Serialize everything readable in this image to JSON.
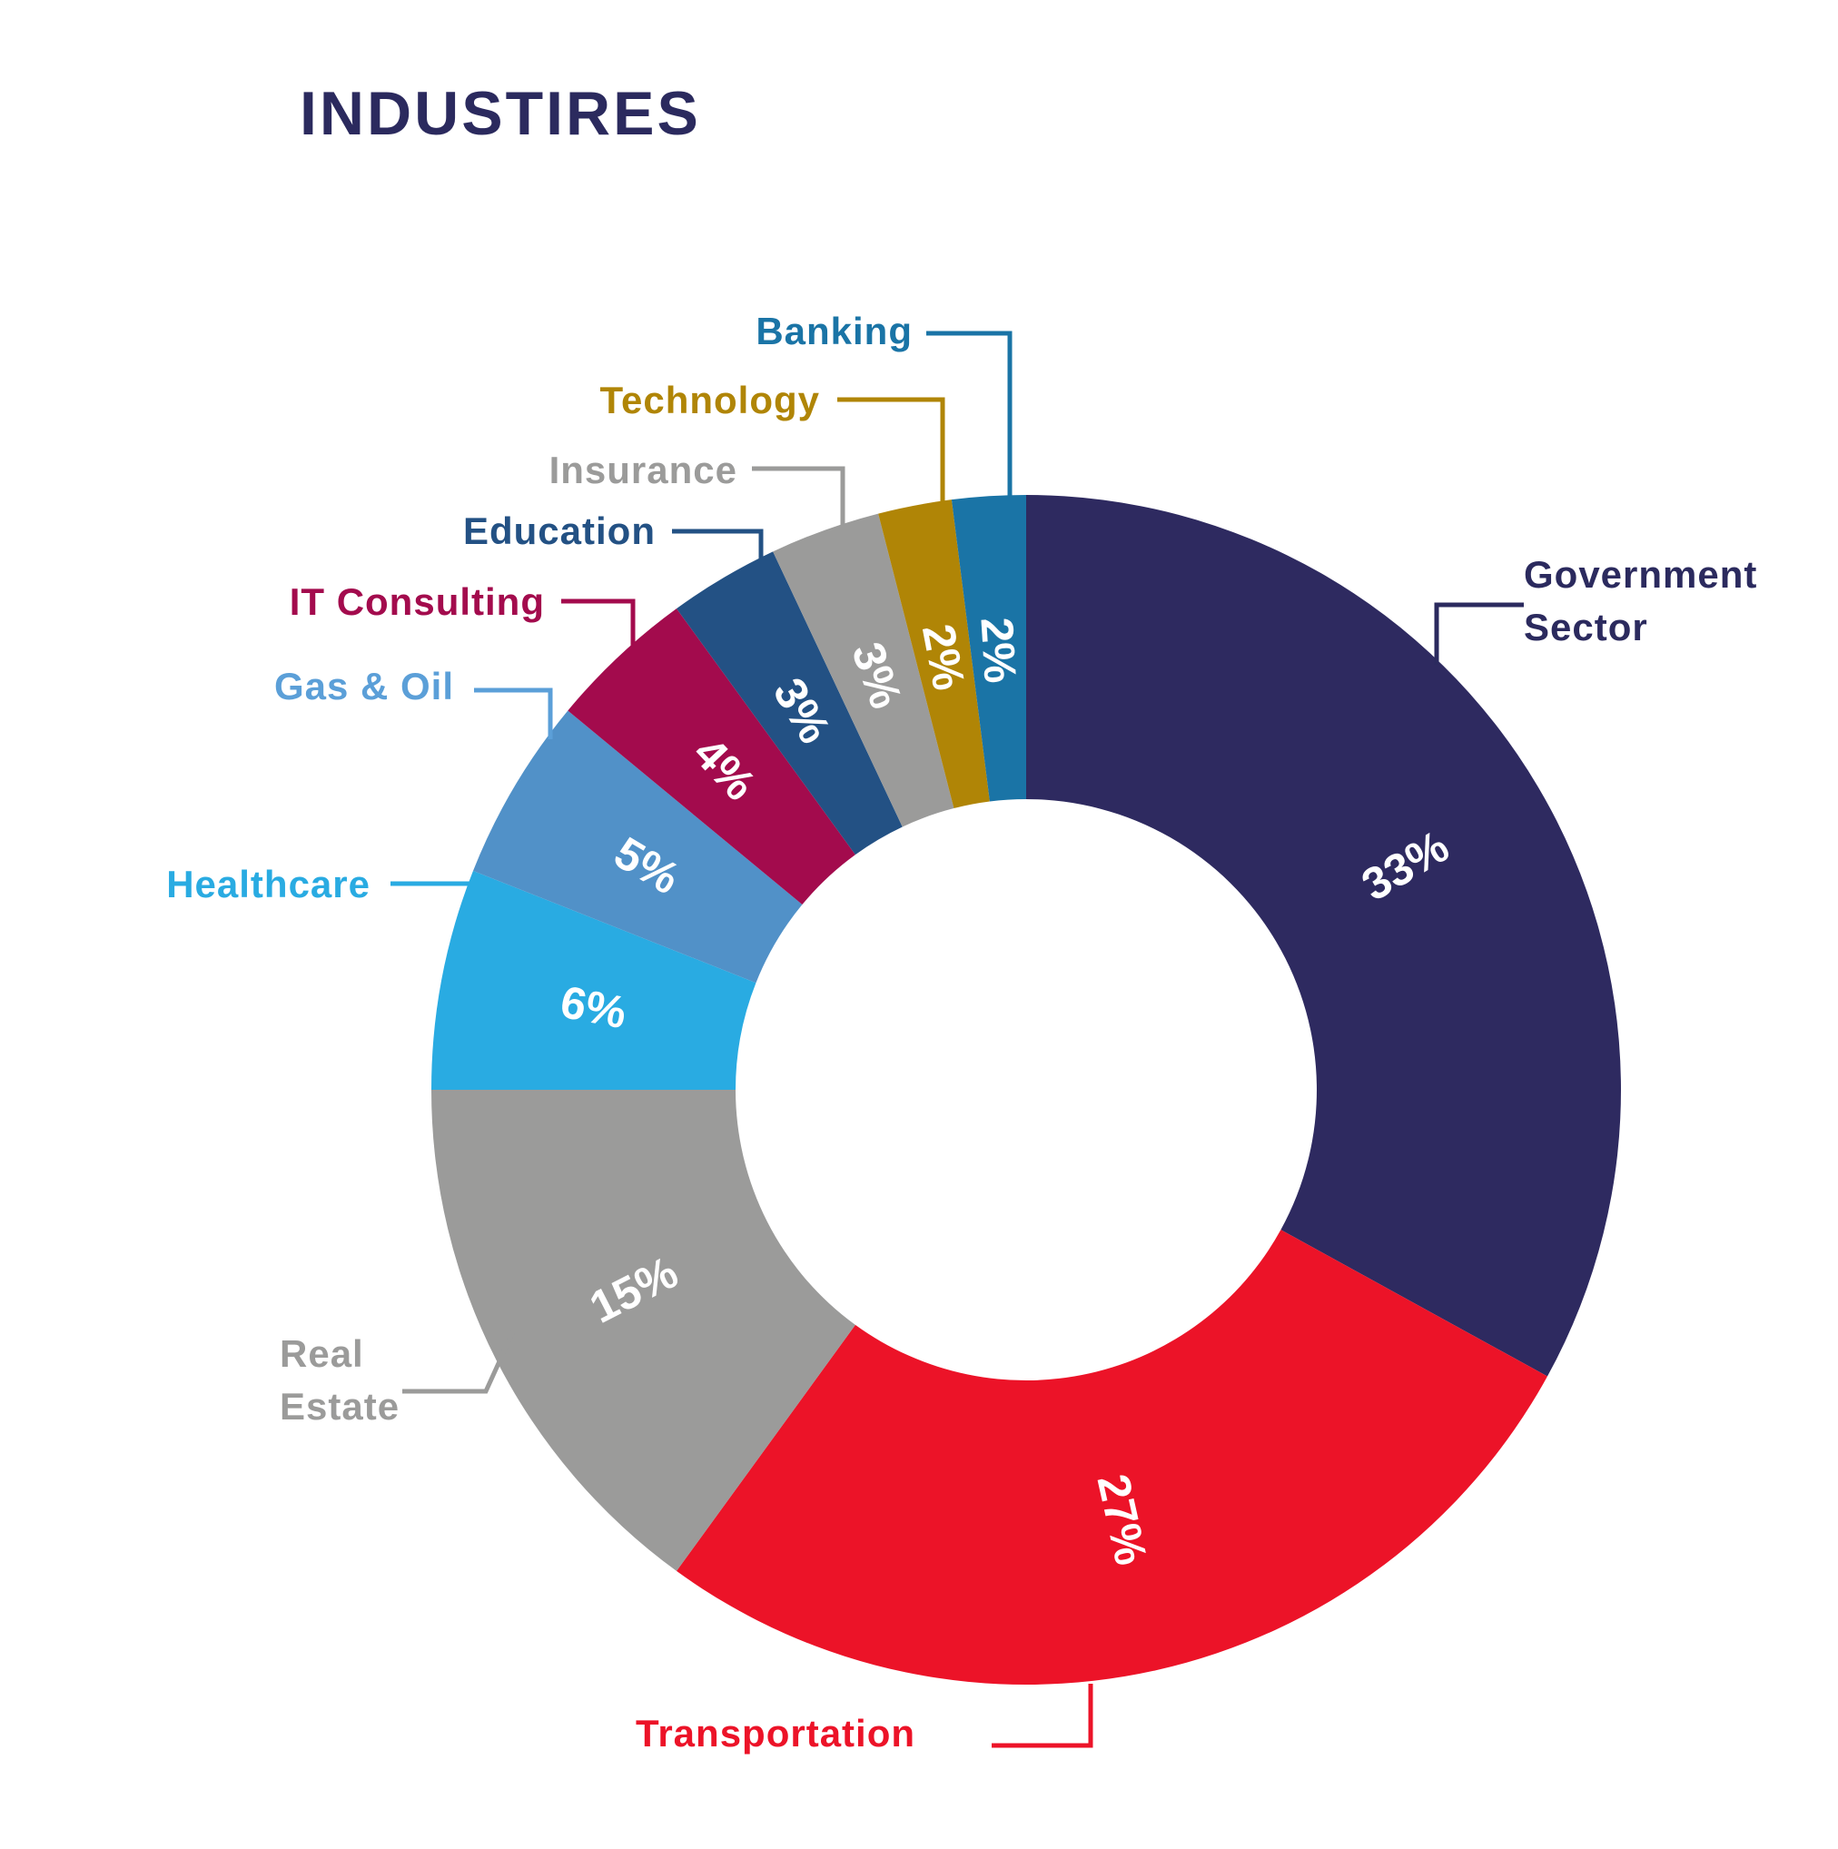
{
  "title": "INDUSTIRES",
  "chart_data": {
    "type": "pie",
    "variant": "donut",
    "title": "INDUSTIRES",
    "unit": "%",
    "direction": "clockwise",
    "start_angle_deg": 0,
    "legend_position": "outer-callouts",
    "percent_label_color": "#ffffff",
    "background_color": "#ffffff",
    "segments": [
      {
        "label": "Government Sector",
        "value": 33,
        "pct_label": "33%",
        "color": "#2e2a60",
        "label_color": "#2b2a5e"
      },
      {
        "label": "Transportation",
        "value": 27,
        "pct_label": "27%",
        "color": "#ec1328",
        "label_color": "#ec1328"
      },
      {
        "label": "Real Estate",
        "value": 15,
        "pct_label": "15%",
        "color": "#9b9b9a",
        "label_color": "#9b9b9a"
      },
      {
        "label": "Healthcare",
        "value": 6,
        "pct_label": "6%",
        "color": "#29abe2",
        "label_color": "#29abe2"
      },
      {
        "label": "Gas & Oil",
        "value": 5,
        "pct_label": "5%",
        "color": "#5191c8",
        "label_color": "#5b9fd8"
      },
      {
        "label": "IT Consulting",
        "value": 4,
        "pct_label": "4%",
        "color": "#a30b4d",
        "label_color": "#a30b4d"
      },
      {
        "label": "Education",
        "value": 3,
        "pct_label": "3%",
        "color": "#235184",
        "label_color": "#235184"
      },
      {
        "label": "Insurance",
        "value": 3,
        "pct_label": "3%",
        "color": "#9b9b9a",
        "label_color": "#9b9b9a"
      },
      {
        "label": "Technology",
        "value": 2,
        "pct_label": "2%",
        "color": "#b08506",
        "label_color": "#b08506"
      },
      {
        "label": "Banking",
        "value": 2,
        "pct_label": "2%",
        "color": "#1a74a6",
        "label_color": "#1a74a6"
      }
    ]
  }
}
